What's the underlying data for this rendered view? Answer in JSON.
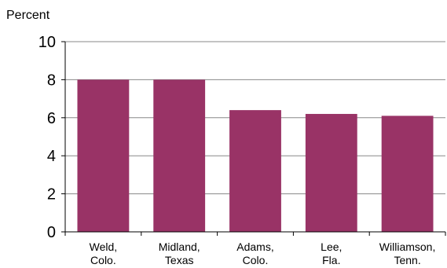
{
  "chart_data": {
    "type": "bar",
    "ylabel": "Percent",
    "categories": [
      [
        "Weld,",
        "Colo."
      ],
      [
        "Midland,",
        "Texas"
      ],
      [
        "Adams,",
        "Colo."
      ],
      [
        "Lee,",
        "Fla."
      ],
      [
        "Williamson,",
        "Tenn."
      ]
    ],
    "values": [
      8.0,
      8.0,
      6.4,
      6.2,
      6.1
    ],
    "ylim": [
      0,
      10
    ],
    "yticks": [
      0,
      2,
      4,
      6,
      8,
      10
    ],
    "grid": true,
    "colors": {
      "bar": "#993366",
      "grid": "#888888",
      "axis": "#000000"
    }
  }
}
